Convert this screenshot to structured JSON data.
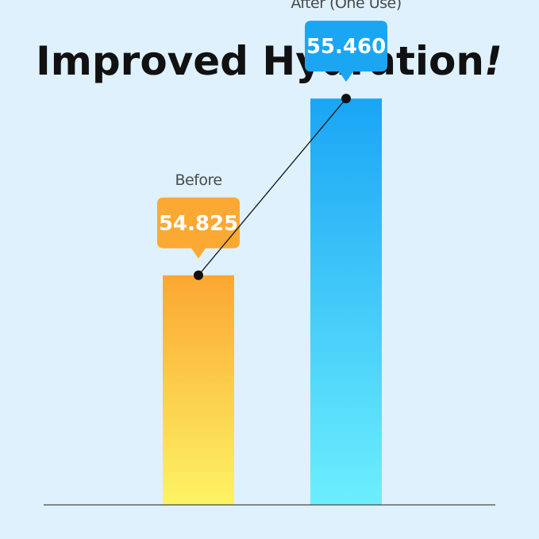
{
  "title": {
    "main": "Improved Hydration",
    "suffix": "!"
  },
  "chart_data": {
    "type": "bar",
    "categories": [
      "Before",
      "After (One Use)"
    ],
    "values": [
      54.825,
      55.46
    ],
    "value_labels": [
      "54.825",
      "55.460"
    ],
    "title": "Improved Hydration!",
    "xlabel": "",
    "ylabel": "",
    "ylim": [
      54.0,
      55.7
    ],
    "grid": false,
    "legend": "none",
    "colors": {
      "before_top": "#fca733",
      "before_bottom": "#fdf464",
      "after_top": "#1aa5f5",
      "after_bottom": "#6ceffd",
      "callout_before": "#fca933",
      "callout_after": "#1ba6f4",
      "connector": "#111111",
      "baseline": "#4a4a4a",
      "background": "#dff1fd"
    }
  }
}
